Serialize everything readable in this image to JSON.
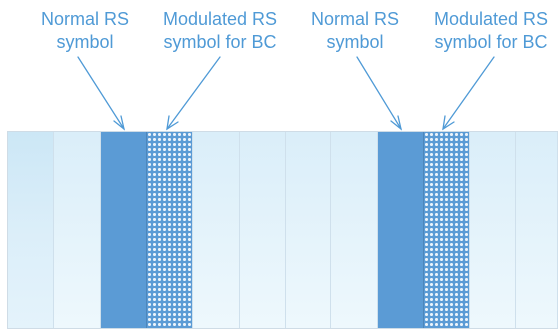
{
  "labels": [
    {
      "line1": "Normal RS",
      "line2": "symbol"
    },
    {
      "line1": "Modulated RS",
      "line2": "symbol for BC"
    },
    {
      "line1": "Normal RS",
      "line2": "symbol"
    },
    {
      "line1": "Modulated RS",
      "line2": "symbol for BC"
    }
  ],
  "frame": {
    "columns": [
      {
        "kind": "plain"
      },
      {
        "kind": "light"
      },
      {
        "kind": "normal-rs"
      },
      {
        "kind": "modulated-rs"
      },
      {
        "kind": "light"
      },
      {
        "kind": "light"
      },
      {
        "kind": "light"
      },
      {
        "kind": "light"
      },
      {
        "kind": "normal-rs"
      },
      {
        "kind": "modulated-rs"
      },
      {
        "kind": "light"
      },
      {
        "kind": "light"
      }
    ]
  },
  "colors": {
    "label_text": "#4f9ad6",
    "arrow": "#4f9ad6",
    "normal_rs_fill": "#5b9bd5",
    "modulated_rs_dots": "#eaf3fb",
    "background_cell": "#dbeef9"
  }
}
